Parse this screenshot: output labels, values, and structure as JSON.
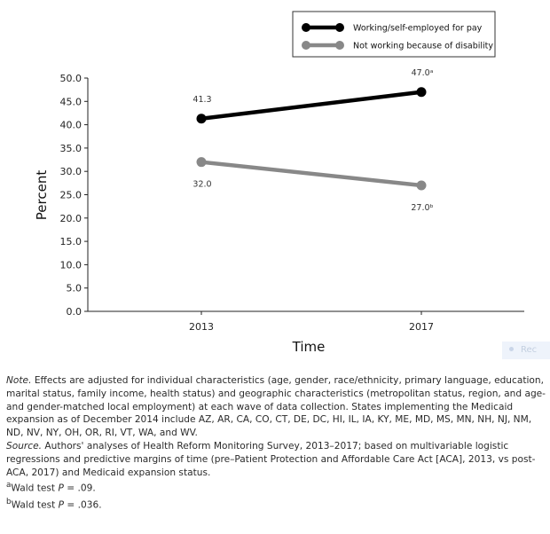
{
  "chart_data": {
    "type": "line",
    "title": "",
    "xlabel": "Time",
    "ylabel": "Percent",
    "categories": [
      "2013",
      "2017"
    ],
    "ylim": [
      0,
      50
    ],
    "yticks": [
      "0.0",
      "5.0",
      "10.0",
      "15.0",
      "20.0",
      "25.0",
      "30.0",
      "35.0",
      "40.0",
      "45.0",
      "50.0"
    ],
    "grid": false,
    "legend_position": "top-right",
    "series": [
      {
        "name": "Working/self-employed for pay",
        "values": [
          41.3,
          47.0
        ],
        "labels": [
          "41.3",
          "47.0ᵃ"
        ],
        "label_side": "above",
        "color": "#000000"
      },
      {
        "name": "Not working because of disability",
        "values": [
          32.0,
          27.0
        ],
        "labels": [
          "32.0",
          "27.0ᵇ"
        ],
        "label_side": "below",
        "color": "#888888"
      }
    ]
  },
  "overlay": {
    "text": "Rec"
  },
  "notes": {
    "note_label": "Note.",
    "note_text": " Effects are adjusted for individual characteristics (age, gender, race/ethnicity, primary language, education, marital status, family income, health status) and geographic characteristics (metropolitan status, region, and age- and gender-matched local employment) at each wave of data collection. States implementing the Medicaid expansion as of December 2014 include AZ, AR, CA, CO, CT, DE, DC, HI, IL, IA, KY, ME, MD, MS, MN, NH, NJ, NM, ND, NV, NY, OH, OR, RI, VT, WA, and WV.",
    "source_label": "Source.",
    "source_text": " Authors' analyses of Health Reform Monitoring Survey, 2013–2017; based on multivariable logistic regressions and predictive margins of time (pre–Patient Protection and Affordable Care Act [ACA], 2013, vs post-ACA, 2017) and Medicaid expansion status.",
    "footnote_a_mark": "a",
    "footnote_a_prefix": "Wald test ",
    "footnote_a_p": "P",
    "footnote_a_value": " = .09.",
    "footnote_b_mark": "b",
    "footnote_b_prefix": "Wald test ",
    "footnote_b_p": "P",
    "footnote_b_value": " = .036."
  }
}
